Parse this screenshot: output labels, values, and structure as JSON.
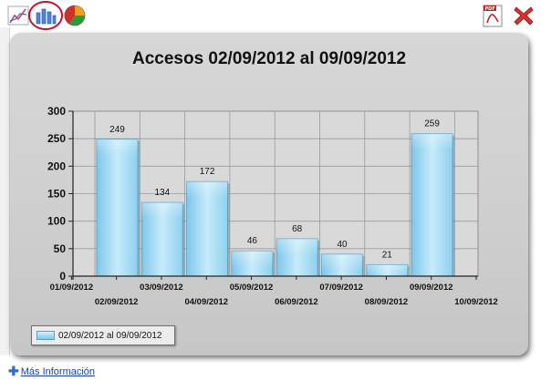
{
  "toolbar": {
    "icons": [
      "line-chart-icon",
      "bar-chart-icon",
      "pie-chart-icon",
      "pdf-icon",
      "close-icon"
    ],
    "colors": {
      "close": "#d8322b",
      "pdf": "#c4231c",
      "selection_circle": "#c8102e"
    }
  },
  "chart_data": {
    "type": "bar",
    "title": "Accesos 02/09/2012 al 09/09/2012",
    "xlabel": "",
    "ylabel": "",
    "ylim": [
      0,
      300
    ],
    "yticks": [
      "0",
      "50",
      "100",
      "150",
      "200",
      "250",
      "300"
    ],
    "xtick_labels_upper": [
      "01/09/2012",
      "03/09/2012",
      "05/09/2012",
      "07/09/2012",
      "09/09/2012"
    ],
    "xtick_labels_lower": [
      "02/09/2012",
      "04/09/2012",
      "06/09/2012",
      "08/09/2012",
      "10/09/2012"
    ],
    "categories": [
      "02/09/2012",
      "03/09/2012",
      "04/09/2012",
      "05/09/2012",
      "06/09/2012",
      "07/09/2012",
      "08/09/2012",
      "09/09/2012"
    ],
    "series": [
      {
        "name": "02/09/2012 al 09/09/2012",
        "values": [
          249,
          134,
          172,
          46,
          68,
          40,
          21,
          259
        ]
      }
    ],
    "data_labels": [
      "249",
      "134",
      "172",
      "46",
      "68",
      "40",
      "21",
      "259"
    ],
    "grid": true,
    "legend": "bottom-left",
    "bar_color": "#9ed7ef"
  },
  "legend": {
    "label": "02/09/2012 al 09/09/2012"
  },
  "footer": {
    "more_info": "Más Información"
  }
}
